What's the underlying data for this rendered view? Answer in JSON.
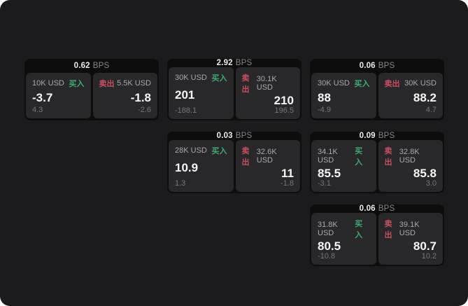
{
  "labels": {
    "bps_unit": "BPS",
    "buy": "买入",
    "sell": "卖出"
  },
  "colors": {
    "panel_bg": "#1b1b1d",
    "card_bg": "#0d0d0e",
    "tile_bg": "#28282b",
    "buy_green": "#3eac72",
    "sell_red": "#c94f5f",
    "price_white": "#f7f7f8",
    "muted_gray": "#77777c"
  },
  "cards": [
    {
      "bps": "0.62",
      "row": 1,
      "col": 1,
      "buy_side": {
        "amount": "10K USD",
        "price": "-3.7",
        "delta": "4.3"
      },
      "sell_side": {
        "amount": "5.5K USD",
        "price": "-1.8",
        "delta": "-2.6"
      }
    },
    {
      "bps": "2.92",
      "row": 1,
      "col": 2,
      "buy_side": {
        "amount": "30K USD",
        "price": "201",
        "delta": "-188.1"
      },
      "sell_side": {
        "amount": "30.1K USD",
        "price": "210",
        "delta": "196.5"
      }
    },
    {
      "bps": "0.06",
      "row": 1,
      "col": 3,
      "buy_side": {
        "amount": "30K USD",
        "price": "88",
        "delta": "-4.9"
      },
      "sell_side": {
        "amount": "30K USD",
        "price": "88.2",
        "delta": "4.7"
      }
    },
    {
      "bps": "0.03",
      "row": 2,
      "col": 2,
      "buy_side": {
        "amount": "28K USD",
        "price": "10.9",
        "delta": "1.3"
      },
      "sell_side": {
        "amount": "32.6K USD",
        "price": "11",
        "delta": "-1.8"
      }
    },
    {
      "bps": "0.09",
      "row": 2,
      "col": 3,
      "buy_side": {
        "amount": "34.1K USD",
        "price": "85.5",
        "delta": "-3.1"
      },
      "sell_side": {
        "amount": "32.8K USD",
        "price": "85.8",
        "delta": "3.0"
      }
    },
    {
      "bps": "0.06",
      "row": 3,
      "col": 3,
      "buy_side": {
        "amount": "31.8K USD",
        "price": "80.5",
        "delta": "-10.8"
      },
      "sell_side": {
        "amount": "39.1K USD",
        "price": "80.7",
        "delta": "10.2"
      }
    }
  ]
}
